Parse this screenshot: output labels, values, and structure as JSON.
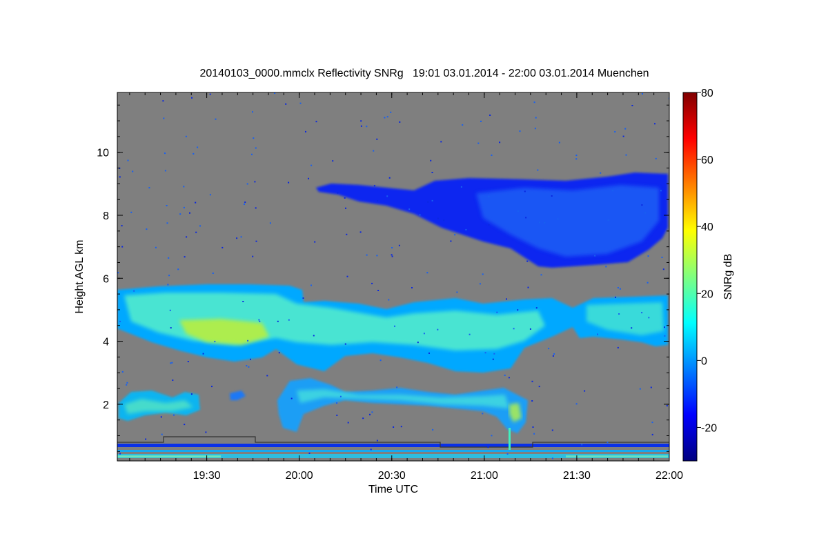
{
  "chart_data": {
    "type": "heatmap",
    "title": "20140103_0000.mmclx Reflectivity SNRg   19:01 03.01.2014 - 22:00 03.01.2014 Muenchen",
    "xlabel": "Time UTC",
    "ylabel": "Height AGL km",
    "colorbar_label": "SNRg dB",
    "x_range": [
      "19:01",
      "22:00"
    ],
    "x_ticks": [
      "19:30",
      "20:00",
      "20:30",
      "21:00",
      "21:30",
      "22:00"
    ],
    "ylim": [
      0.2,
      11.9
    ],
    "y_ticks": [
      "2",
      "4",
      "6",
      "8",
      "10"
    ],
    "colorbar_range": [
      -30,
      80
    ],
    "colorbar_ticks": [
      "-20",
      "0",
      "20",
      "40",
      "60",
      "80"
    ],
    "colormap": "jet",
    "background_color": "#7f7f7f",
    "features": [
      {
        "name": "upper cirrus layer",
        "time_start": "20:02",
        "time_end": "22:00",
        "height_km": [
          6.4,
          9.4
        ],
        "snr_db": [
          -20,
          0
        ]
      },
      {
        "name": "mid-level cloud layer",
        "time_start": "19:01",
        "time_end": "22:00",
        "height_km": [
          3.0,
          5.8
        ],
        "snr_db": [
          0,
          35
        ]
      },
      {
        "name": "low-level cloud layer",
        "time_start": "19:01",
        "time_end": "21:15",
        "height_km": [
          0.8,
          2.8
        ],
        "snr_db": [
          -10,
          25
        ]
      },
      {
        "name": "near-ground clutter",
        "time_start": "19:01",
        "time_end": "22:00",
        "height_km": [
          0.2,
          0.7
        ],
        "snr_db": [
          -10,
          20
        ]
      }
    ]
  }
}
